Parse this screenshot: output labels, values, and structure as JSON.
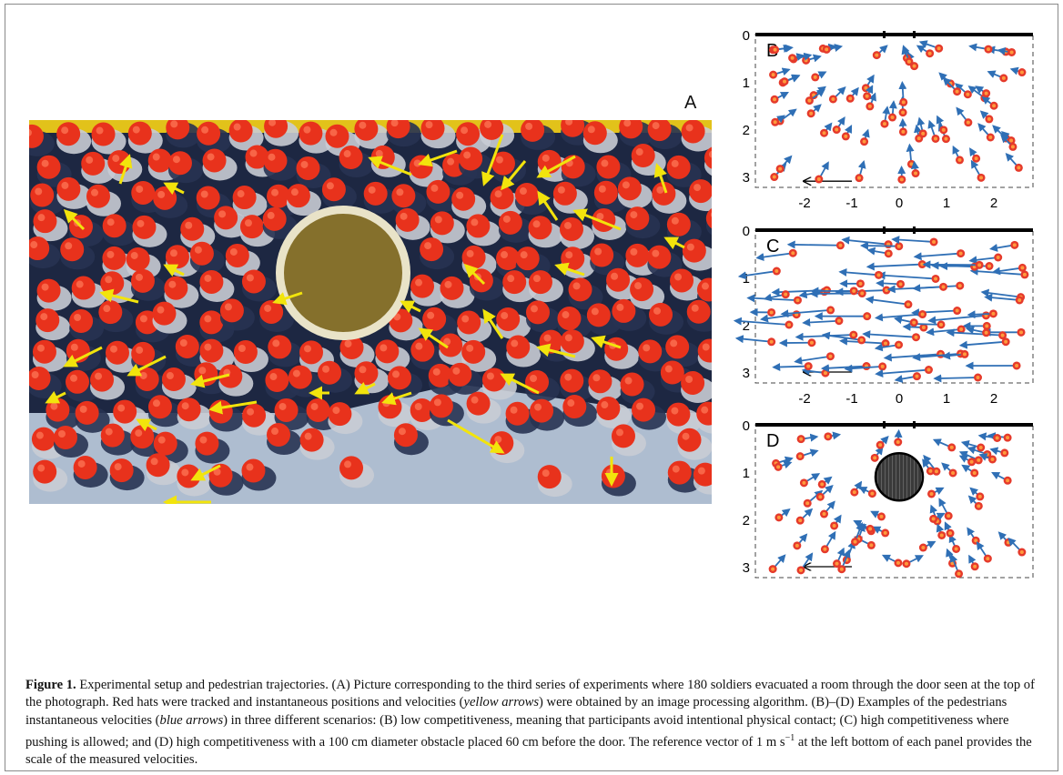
{
  "figure": {
    "photo_panel_label": "A",
    "photo": {
      "description": "Overhead photograph of soldiers in dark uniforms and red hats crowding around a circular obstacle, with yellow velocity arrows",
      "colors": {
        "hat": "#e8321c",
        "uniform": "#1d2742",
        "arrow": "#f2e40c",
        "obstacle_fill": "#85702c",
        "obstacle_ring": "#e9e3c8",
        "floor": "#aebdd0",
        "door_band": "#e2c21a"
      }
    },
    "panels": [
      {
        "label": "B",
        "scenario": "low competitiveness",
        "obstacle": false,
        "arrow_direction": "toward door"
      },
      {
        "label": "C",
        "scenario": "high competitiveness, pushing allowed",
        "obstacle": false,
        "arrow_direction": "leftward"
      },
      {
        "label": "D",
        "scenario": "high competitiveness with obstacle",
        "obstacle": true,
        "arrow_direction": "toward door around obstacle"
      }
    ],
    "axes": {
      "x_ticks": [
        "-2",
        "-1",
        "0",
        "1",
        "2"
      ],
      "y_ticks": [
        "0",
        "1",
        "2",
        "3"
      ]
    },
    "colors": {
      "pedestrian_outer": "#e53a2b",
      "pedestrian_inner": "#ff9a3c",
      "velocity_arrow": "#2f6fb5",
      "wall": "#000000",
      "obstacle": "#3a3a3a"
    }
  },
  "caption": {
    "label": "Figure 1.",
    "seg1": " Experimental setup and pedestrian trajectories. (A) Picture corresponding to the third series of experiments where 180 soldiers evacuated a room through the door seen at the top of the photograph. Red hats were tracked and instantaneous positions and velocities (",
    "em1": "yellow arrows",
    "seg2": ") were obtained by an image processing algorithm. (B)–(D) Examples of the pedestrians instantaneous velocities (",
    "em2": "blue arrows",
    "seg3": ") in three different scenarios: (B) low competitiveness, meaning that participants avoid intentional physical contact; (C) high competitiveness where pushing is allowed; and (D) high competitiveness with a 100 cm diameter obstacle placed 60 cm before the door. The reference vector of 1 m s",
    "sup": "−1",
    "seg4": " at the left bottom of each panel provides the scale of the measured velocities."
  }
}
